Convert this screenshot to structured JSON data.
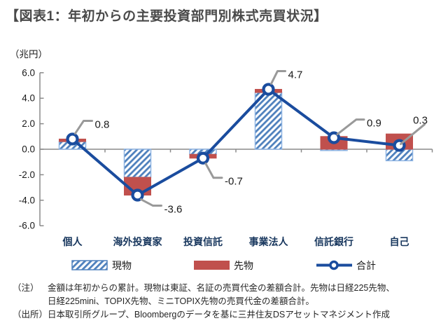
{
  "title": "【図表1：年初からの主要投資部門別株式売買状況】",
  "chart_data": {
    "type": "bar",
    "subtype": "stacked-bars-with-total-line",
    "title": "【図表1：年初からの主要投資部門別株式売買状況】",
    "unit_label": "（兆円）",
    "categories": [
      "個人",
      "海外投資家",
      "投資信託",
      "事業法人",
      "信託銀行",
      "自己"
    ],
    "series": [
      {
        "name": "現物",
        "type": "bar",
        "style": "blue-hatched",
        "values": [
          0.6,
          -2.2,
          -0.4,
          4.45,
          -0.1,
          -0.9
        ]
      },
      {
        "name": "先物",
        "type": "bar",
        "style": "red-solid",
        "values": [
          0.2,
          -1.4,
          -0.3,
          0.25,
          1.0,
          1.2
        ]
      },
      {
        "name": "合計",
        "type": "line-with-markers",
        "values": [
          0.8,
          -3.6,
          -0.7,
          4.7,
          0.9,
          0.3
        ]
      }
    ],
    "data_labels": [
      "0.8",
      "-3.6",
      "-0.7",
      "4.7",
      "0.9",
      "0.3"
    ],
    "ylim": [
      -6.0,
      6.0
    ],
    "ytick_step": 2.0,
    "ytick_labels": [
      "6.0",
      "4.0",
      "2.0",
      "0.0",
      "-2.0",
      "-4.0",
      "-6.0"
    ],
    "grid": false,
    "legend_position": "bottom",
    "legend": [
      "現物",
      "先物",
      "合計"
    ]
  },
  "colors": {
    "title": "#4a4a4a",
    "text": "#1a1a1a",
    "axis": "#8a8a8a",
    "leader": "#999999",
    "spot_hatch": "#4f81bd",
    "spot_border": "#8eb4e3",
    "futures_red": "#c0504d",
    "total_line": "#1a4c9e",
    "category_label": "#17365d"
  },
  "notes": {
    "note_label": "（注）",
    "note_line1": "金額は年初からの累計。現物は東証、名証の売買代金の差額合計。先物は日経225先物、",
    "note_line2": "日経225mini、TOPIX先物、ミニTOPIX先物の売買代金の差額合計。",
    "source_label": "（出所）",
    "source_line": "日本取引所グループ、Bloombergのデータを基に三井住友DSアセットマネジメント作成"
  }
}
